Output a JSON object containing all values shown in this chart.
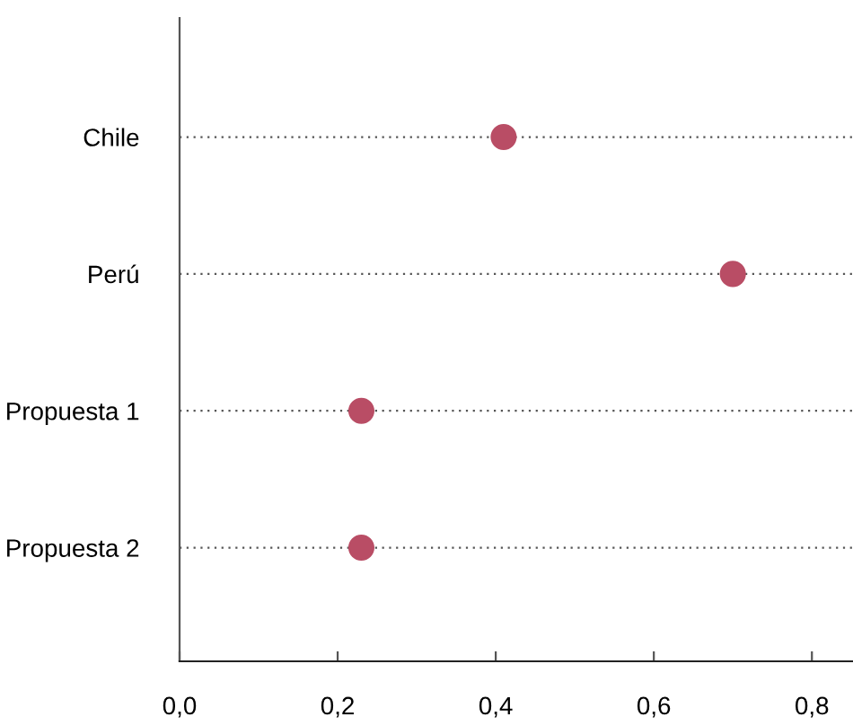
{
  "chart_data": {
    "type": "scatter",
    "orientation": "horizontal",
    "categories": [
      "Chile",
      "Perú",
      "Propuesta 1",
      "Propuesta 2"
    ],
    "series": [
      {
        "color": "#b94d65",
        "values": [
          0.41,
          0.7,
          0.23,
          0.23
        ]
      }
    ],
    "xlim": [
      0,
      0.852
    ],
    "xticks": [
      {
        "value": 0,
        "label": "0,0"
      },
      {
        "value": 0.2,
        "label": "0,2"
      },
      {
        "value": 0.4,
        "label": "0,4"
      },
      {
        "value": 0.6,
        "label": "0,6"
      },
      {
        "value": 0.8,
        "label": "0,8"
      }
    ],
    "grid": "y",
    "marker": "circle"
  }
}
